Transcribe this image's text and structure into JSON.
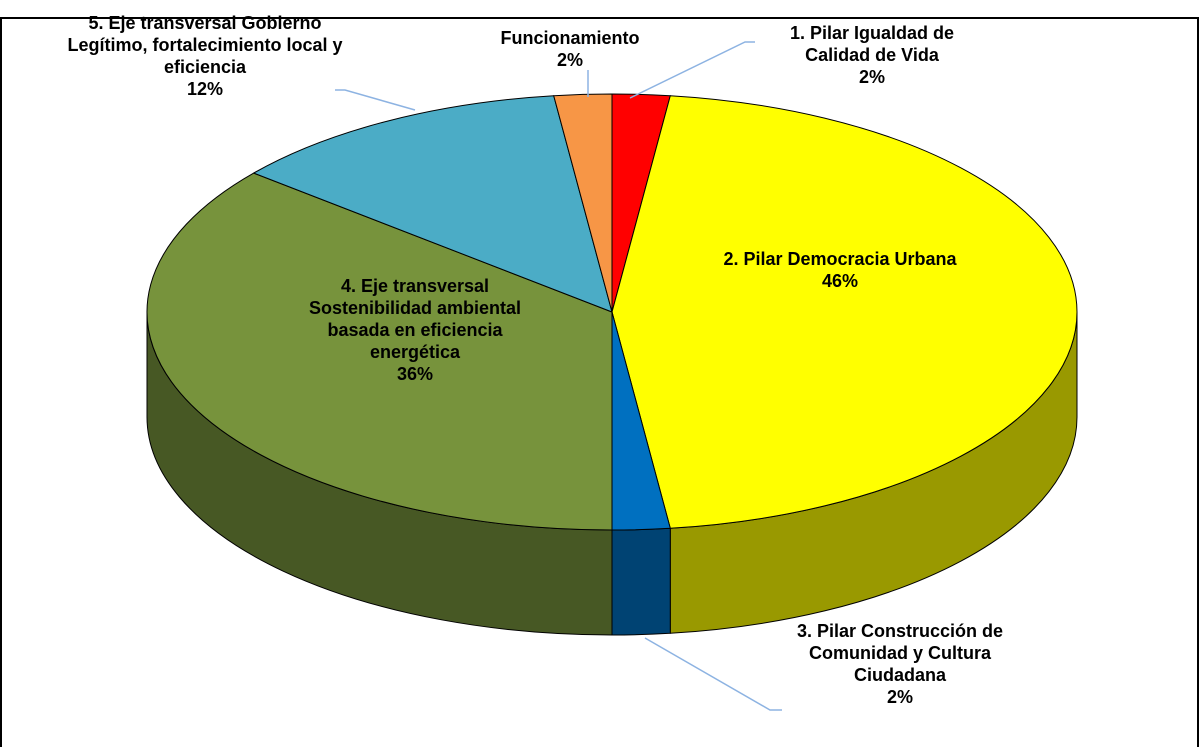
{
  "chart_data": {
    "type": "pie",
    "categories": [
      "1. Pilar Igualdad de Calidad de Vida",
      "2. Pilar Democracia Urbana",
      "3. Pilar Construcción de Comunidad y Cultura Ciudadana",
      "4. Eje transversal Sostenibilidad ambiental basada en eficiencia energética",
      "5. Eje transversal Gobierno Legítimo, fortalecimiento local y eficiencia",
      "Funcionamiento"
    ],
    "values": [
      2,
      46,
      2,
      36,
      12,
      2
    ],
    "value_labels": [
      "2%",
      "46%",
      "2%",
      "36%",
      "12%",
      "2%"
    ],
    "colors": [
      "#ff0000",
      "#ffff00",
      "#0070c0",
      "#77933c",
      "#4bacc6",
      "#f79646"
    ]
  }
}
